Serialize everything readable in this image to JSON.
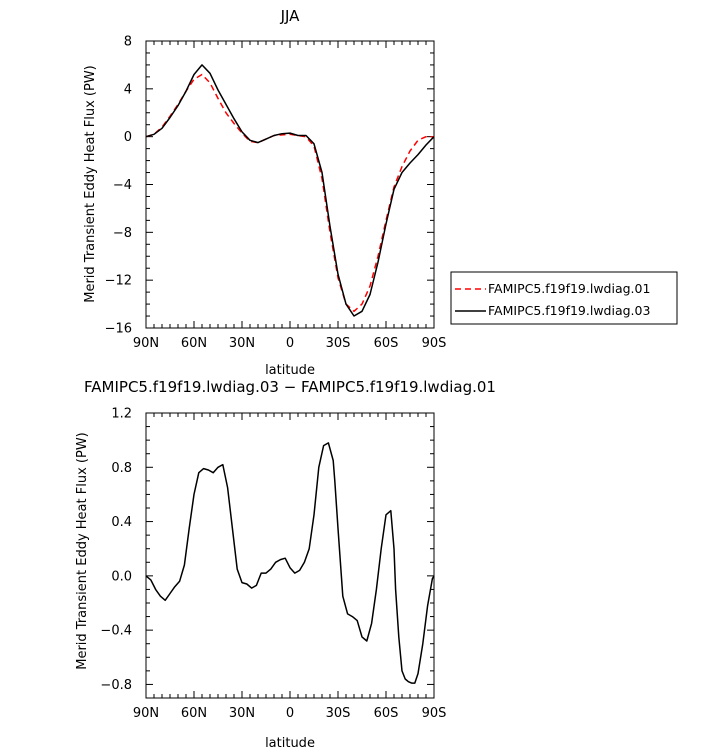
{
  "chart_data": [
    {
      "type": "line",
      "title": "JJA",
      "xlabel": "latitude",
      "ylabel": "Merid Transient Eddy Heat Flux (PW)",
      "xlim": [
        90,
        -90
      ],
      "ylim": [
        -16,
        8
      ],
      "xticks": [
        90,
        60,
        30,
        0,
        -30,
        -60,
        -90
      ],
      "xtick_labels": [
        "90N",
        "60N",
        "30N",
        "0",
        "30S",
        "60S",
        "90S"
      ],
      "yticks": [
        8,
        4,
        0,
        -4,
        -8,
        -12,
        -16
      ],
      "ytick_labels": [
        "8",
        "4",
        "0",
        "−4",
        "−8",
        "−12",
        "−16"
      ],
      "legend_position": "right",
      "grid": false,
      "series": [
        {
          "name": "FAMIPC5.f19f19.lwdiag.01",
          "color": "#ff0000",
          "dash": "dashed",
          "x": [
            90,
            85,
            80,
            75,
            70,
            65,
            60,
            55,
            50,
            45,
            40,
            35,
            30,
            25,
            20,
            15,
            10,
            5,
            0,
            -5,
            -10,
            -15,
            -20,
            -25,
            -30,
            -35,
            -40,
            -45,
            -50,
            -55,
            -60,
            -65,
            -70,
            -75,
            -80,
            -85,
            -90
          ],
          "y": [
            0,
            0.2,
            0.8,
            1.7,
            2.7,
            3.8,
            4.8,
            5.2,
            4.5,
            3.2,
            2.0,
            1.1,
            0.3,
            -0.4,
            -0.5,
            -0.2,
            0.1,
            0.15,
            0.2,
            0.1,
            0.0,
            -0.8,
            -3.5,
            -8.0,
            -11.8,
            -14.0,
            -14.6,
            -14.0,
            -12.5,
            -10.0,
            -7.0,
            -4.2,
            -2.5,
            -1.2,
            -0.3,
            0.0,
            0.0
          ]
        },
        {
          "name": "FAMIPC5.f19f19.lwdiag.03",
          "color": "#000000",
          "dash": "solid",
          "x": [
            90,
            85,
            80,
            75,
            70,
            65,
            60,
            55,
            50,
            45,
            40,
            35,
            30,
            25,
            20,
            15,
            10,
            5,
            0,
            -5,
            -10,
            -15,
            -20,
            -25,
            -30,
            -35,
            -40,
            -45,
            -50,
            -55,
            -60,
            -65,
            -70,
            -75,
            -80,
            -85,
            -90
          ],
          "y": [
            0,
            0.2,
            0.7,
            1.6,
            2.6,
            3.8,
            5.2,
            6.0,
            5.3,
            3.9,
            2.7,
            1.5,
            0.4,
            -0.3,
            -0.5,
            -0.2,
            0.1,
            0.25,
            0.3,
            0.1,
            0.1,
            -0.6,
            -3.0,
            -7.5,
            -11.5,
            -14.0,
            -15.0,
            -14.6,
            -13.2,
            -10.5,
            -7.3,
            -4.4,
            -3.0,
            -2.2,
            -1.5,
            -0.7,
            0.0
          ]
        }
      ]
    },
    {
      "type": "line",
      "title": "FAMIPC5.f19f19.lwdiag.03 − FAMIPC5.f19f19.lwdiag.01",
      "xlabel": "latitude",
      "ylabel": "Merid Transient Eddy Heat Flux (PW)",
      "xlim": [
        90,
        -90
      ],
      "ylim": [
        -0.9,
        1.2
      ],
      "xticks": [
        90,
        60,
        30,
        0,
        -30,
        -60,
        -90
      ],
      "xtick_labels": [
        "90N",
        "60N",
        "30N",
        "0",
        "30S",
        "60S",
        "90S"
      ],
      "yticks": [
        1.2,
        0.8,
        0.4,
        0.0,
        -0.4,
        -0.8
      ],
      "ytick_labels": [
        "1.2",
        "0.8",
        "0.4",
        "0.0",
        "−0.4",
        "−0.8"
      ],
      "grid": false,
      "series": [
        {
          "color": "#000000",
          "dash": "solid",
          "x": [
            90,
            87,
            84,
            81,
            78,
            75,
            72,
            69,
            66,
            63,
            60,
            57,
            54,
            51,
            48,
            45,
            42,
            39,
            36,
            33,
            30,
            27,
            24,
            21,
            18,
            15,
            12,
            9,
            6,
            3,
            0,
            -3,
            -6,
            -9,
            -12,
            -15,
            -18,
            -21,
            -24,
            -27,
            -28,
            -30,
            -33,
            -36,
            -39,
            -42,
            -45,
            -48,
            -51,
            -54,
            -57,
            -60,
            -63,
            -65,
            -66,
            -68,
            -70,
            -72,
            -74,
            -76,
            -78,
            -80,
            -83,
            -86,
            -89,
            -90
          ],
          "y": [
            0.0,
            -0.03,
            -0.1,
            -0.15,
            -0.18,
            -0.13,
            -0.08,
            -0.04,
            0.08,
            0.35,
            0.6,
            0.76,
            0.79,
            0.78,
            0.76,
            0.8,
            0.82,
            0.65,
            0.35,
            0.05,
            -0.05,
            -0.06,
            -0.09,
            -0.07,
            0.02,
            0.02,
            0.05,
            0.1,
            0.12,
            0.13,
            0.06,
            0.02,
            0.04,
            0.1,
            0.2,
            0.45,
            0.8,
            0.96,
            0.98,
            0.85,
            0.7,
            0.35,
            -0.15,
            -0.28,
            -0.3,
            -0.33,
            -0.45,
            -0.48,
            -0.35,
            -0.1,
            0.2,
            0.45,
            0.48,
            0.2,
            -0.1,
            -0.45,
            -0.7,
            -0.76,
            -0.78,
            -0.79,
            -0.79,
            -0.72,
            -0.5,
            -0.22,
            -0.02,
            0.0
          ]
        }
      ]
    }
  ]
}
